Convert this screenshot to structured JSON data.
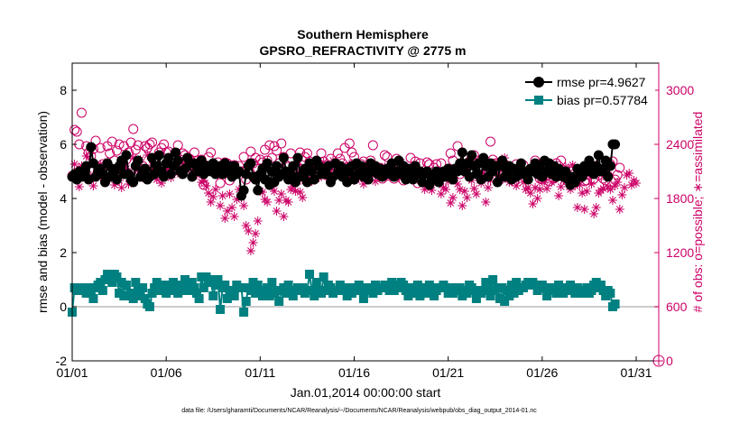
{
  "chart_data": {
    "type": "line",
    "title": "Southern Hemisphere",
    "subtitle": "GPSRO_REFRACTIVITY @ 2775 m",
    "xlabel": "Jan.01,2014 00:00:00 start",
    "ylabel_left": "rmse and bias (model - observation)",
    "ylabel_right": "# of obs: o=possible; ∗=assimilated",
    "footnote": "data file: /Users/gharamti/Documents/NCAR/Reanalysis/~/Documents/NCAR/Reanalysis/webpub/obs_diag_output_2014-01.nc",
    "x_ticks": [
      "01/01",
      "01/06",
      "01/11",
      "01/16",
      "01/21",
      "01/26",
      "01/31"
    ],
    "x_tick_days": [
      1,
      6,
      11,
      16,
      21,
      26,
      31
    ],
    "xlim": [
      1,
      32.2
    ],
    "ylim_left": [
      -2,
      9
    ],
    "yticks_left": [
      "-2",
      "0",
      "2",
      "4",
      "6",
      "8"
    ],
    "ylim_right": [
      0,
      3300
    ],
    "yticks_right": [
      "0",
      "600",
      "1200",
      "1800",
      "2400",
      "3000"
    ],
    "legend_position": "top-right",
    "colors": {
      "rmse": "#000000",
      "bias": "#008080",
      "obs": "#cc0066",
      "zero_line": "#bbbbbb"
    },
    "series": [
      {
        "name": "rmse",
        "legend": "rmse pr=4.9627",
        "axis": "left",
        "values": [
          4.8,
          4.9,
          4.7,
          5.0,
          4.8,
          4.9,
          5.2,
          4.7,
          5.9,
          5.3,
          4.8,
          5.0,
          5.1,
          4.9,
          4.6,
          5.3,
          4.8,
          5.1,
          5.0,
          4.7,
          5.2,
          5.4,
          4.9,
          5.6,
          4.9,
          4.7,
          4.6,
          5.2,
          5.4,
          4.8,
          5.0,
          5.1,
          4.7,
          4.8,
          5.5,
          4.9,
          5.2,
          5.6,
          5.0,
          4.8,
          5.3,
          5.5,
          4.9,
          5.2,
          5.7,
          5.4,
          5.0,
          4.9,
          5.1,
          5.5,
          5.3,
          4.8,
          5.3,
          5.2,
          5.0,
          5.4,
          4.9,
          5.2,
          5.2,
          5.0,
          5.3,
          4.9,
          5.1,
          5.2,
          4.9,
          5.3,
          5.0,
          5.2,
          4.8,
          5.2,
          4.9,
          5.0,
          4.1,
          4.3,
          4.9,
          5.2,
          5.3,
          4.8,
          4.7,
          4.3,
          4.9,
          5.1,
          4.7,
          5.3,
          4.5,
          5.0,
          4.6,
          5.2,
          4.8,
          4.9,
          5.5,
          5.0,
          4.7,
          4.9,
          5.2,
          4.6,
          5.5,
          4.8,
          4.9,
          5.1,
          4.6,
          5.3,
          5.0,
          4.7,
          5.4,
          5.2,
          4.9,
          5.0,
          4.9,
          5.2,
          4.6,
          4.8,
          5.3,
          4.9,
          5.2,
          4.8,
          5.1,
          4.6,
          5.0,
          5.2,
          4.7,
          5.3,
          4.9,
          5.2,
          4.8,
          5.0,
          4.7,
          5.3,
          5.0,
          5.2,
          4.9,
          5.1,
          4.8,
          5.0,
          5.1,
          4.9,
          5.3,
          4.8,
          5.0,
          5.4,
          4.9,
          5.2,
          4.7,
          5.1,
          5.0,
          4.7,
          5.2,
          4.9,
          5.0,
          4.6,
          4.9,
          5.0,
          4.5,
          4.7,
          4.8,
          5.0,
          4.6,
          4.9,
          5.0,
          4.8,
          5.1,
          4.9,
          4.7,
          5.1,
          5.0,
          5.3,
          5.7,
          5.0,
          5.3,
          4.8,
          5.6,
          5.2,
          4.9,
          5.3,
          4.7,
          5.5,
          5.2,
          4.8,
          5.3,
          5.0,
          5.2,
          4.6,
          5.2,
          5.4,
          4.8,
          5.0,
          5.2,
          4.7,
          5.1,
          4.8,
          5.0,
          5.3,
          4.9,
          5.0,
          4.7,
          5.1,
          5.0,
          5.3,
          4.9,
          5.2,
          4.8,
          5.4,
          5.0,
          5.3,
          4.9,
          5.2,
          4.8,
          5.1,
          4.9,
          4.8,
          5.0,
          4.7,
          4.5,
          4.8,
          4.6,
          5.1,
          4.9,
          4.8,
          5.2,
          5.0,
          5.4,
          5.1,
          4.9,
          5.2,
          5.6,
          5.0,
          5.1,
          5.4,
          4.8,
          5.2,
          6.0,
          6.0
        ]
      },
      {
        "name": "bias",
        "legend": "bias pr=0.57784",
        "axis": "left",
        "values": [
          -0.2,
          0.7,
          0.6,
          0.7,
          0.6,
          0.7,
          0.5,
          0.7,
          0.6,
          0.3,
          0.7,
          0.8,
          0.9,
          0.6,
          1.0,
          1.2,
          1.1,
          0.9,
          1.2,
          1.1,
          0.5,
          0.9,
          0.4,
          0.8,
          0.4,
          0.5,
          0.3,
          0.9,
          0.6,
          0.4,
          0.7,
          0.3,
          0.1,
          0.0,
          0.5,
          0.7,
          0.9,
          0.6,
          0.8,
          0.7,
          0.5,
          0.8,
          0.6,
          0.9,
          0.6,
          0.5,
          0.8,
          0.6,
          1.0,
          0.8,
          0.6,
          0.9,
          0.7,
          0.5,
          0.3,
          1.1,
          0.7,
          1.1,
          0.9,
          1.0,
          0.4,
          0.8,
          1.0,
          -0.1,
          0.7,
          0.8,
          0.3,
          0.6,
          0.6,
          0.4,
          0.8,
          0.7,
          0.7,
          -0.2,
          0.2,
          0.7,
          0.6,
          0.9,
          0.5,
          0.8,
          0.6,
          0.4,
          0.4,
          0.7,
          0.4,
          0.9,
          0.5,
          0.6,
          0.2,
          0.6,
          0.7,
          0.5,
          0.8,
          0.6,
          0.4,
          0.6,
          0.7,
          0.6,
          0.7,
          0.5,
          0.6,
          1.2,
          0.6,
          0.4,
          0.9,
          0.6,
          0.5,
          1.1,
          0.6,
          0.8,
          0.7,
          0.5,
          0.6,
          0.6,
          0.8,
          0.7,
          0.6,
          0.4,
          0.7,
          0.5,
          0.7,
          0.6,
          0.8,
          0.6,
          0.3,
          0.7,
          0.6,
          0.7,
          0.5,
          0.8,
          0.6,
          0.7,
          0.7,
          0.8,
          0.7,
          0.6,
          0.9,
          0.6,
          0.8,
          0.7,
          0.9,
          0.8,
          0.6,
          0.4,
          0.7,
          0.6,
          0.5,
          0.8,
          0.4,
          0.7,
          0.6,
          0.5,
          0.8,
          0.7,
          0.4,
          0.6,
          0.7,
          0.7,
          0.8,
          0.7,
          0.5,
          0.7,
          0.5,
          0.7,
          0.6,
          0.7,
          0.4,
          0.6,
          0.5,
          0.8,
          0.7,
          0.6,
          0.3,
          0.6,
          0.5,
          0.6,
          0.9,
          0.7,
          0.4,
          1.0,
          0.6,
          0.7,
          0.3,
          0.7,
          0.2,
          0.6,
          0.4,
          0.8,
          0.5,
          0.9,
          0.6,
          0.7,
          0.7,
          0.8,
          0.9,
          0.8,
          0.9,
          0.8,
          0.6,
          0.7,
          0.8,
          0.7,
          0.4,
          0.7,
          0.6,
          0.7,
          0.5,
          0.8,
          0.6,
          0.5,
          0.7,
          0.6,
          0.8,
          0.6,
          0.5,
          0.7,
          0.6,
          0.5,
          0.6,
          0.7,
          0.5,
          0.6,
          0.8,
          0.9,
          0.7,
          0.8,
          0.6,
          0.4,
          0.6,
          0.5,
          0.0,
          0.1
        ]
      },
      {
        "name": "possible",
        "axis": "right",
        "marker": "circle",
        "values": [
          2050,
          2560,
          2540,
          2400,
          2750,
          2090,
          2380,
          2310,
          2270,
          2350,
          2440,
          2110,
          2360,
          2180,
          2000,
          2380,
          2300,
          2430,
          2220,
          2330,
          2400,
          2190,
          2380,
          2230,
          2310,
          2420,
          2570,
          2340,
          2390,
          2130,
          2160,
          2380,
          2360,
          2400,
          2420,
          2210,
          2130,
          2310,
          2360,
          2400,
          2310,
          2320,
          2160,
          2220,
          2110,
          2390,
          2230,
          2300,
          2280,
          2210,
          2240,
          2120,
          2310,
          2220,
          2170,
          2230,
          1950,
          2100,
          2260,
          2310,
          2170,
          2110,
          2200,
          1970,
          2140,
          2200,
          2190,
          2000,
          2100,
          2170,
          2090,
          2160,
          2100,
          2260,
          2010,
          2100,
          2320,
          2190,
          2250,
          2130,
          2230,
          2200,
          2340,
          2220,
          2390,
          2250,
          2380,
          2330,
          2190,
          2410,
          2260,
          2170,
          2150,
          2300,
          2090,
          2160,
          2150,
          2310,
          2220,
          2260,
          2300,
          2210,
          2110,
          2190,
          2180,
          2120,
          2300,
          2210,
          2060,
          2130,
          2240,
          2070,
          2190,
          2300,
          2240,
          2190,
          2360,
          2150,
          2410,
          2310,
          2260,
          2140,
          2160,
          2180,
          2210,
          2130,
          2050,
          2220,
          2390,
          2100,
          2080,
          2140,
          2020,
          2280,
          2260,
          2050,
          2100,
          2020,
          2240,
          2130,
          2170,
          2000,
          2080,
          2100,
          2250,
          2050,
          2210,
          1970,
          2190,
          2080,
          2050,
          2200,
          2180,
          2020,
          2140,
          2180,
          2060,
          2190,
          2040,
          2050,
          2120,
          2300,
          2220,
          2130,
          2380,
          2070,
          2120,
          2140,
          2250,
          2210,
          2230,
          2280,
          2220,
          2130,
          2150,
          2030,
          2170,
          2070,
          2430,
          2230,
          2190,
          2130,
          2010,
          2050,
          2180,
          2110,
          2140,
          2060,
          1990,
          2180,
          2060,
          2120,
          2170,
          2020,
          2090,
          2100,
          2120,
          2220,
          2180,
          2020,
          2010,
          2160,
          2060,
          1990,
          2110,
          2020,
          2190,
          2160,
          2220,
          2040,
          2070,
          1990,
          2100,
          2130,
          2080,
          2050,
          2030,
          2110,
          1990,
          2000,
          2060,
          2080,
          2020,
          2100,
          2060,
          2210,
          2020,
          2000,
          2050,
          2180,
          2210,
          2010,
          2060,
          2140
        ]
      },
      {
        "name": "assimilated",
        "axis": "right",
        "marker": "star",
        "values": [
          2060,
          2180,
          2100,
          1930,
          2160,
          2120,
          2270,
          2010,
          2050,
          1940,
          2060,
          2140,
          2180,
          2100,
          2020,
          2210,
          2030,
          2050,
          1950,
          2100,
          2000,
          1920,
          2110,
          2130,
          1960,
          2020,
          2250,
          2120,
          2170,
          2230,
          2030,
          2090,
          2280,
          2070,
          2170,
          2150,
          2010,
          2100,
          1970,
          2080,
          2130,
          2100,
          2030,
          2160,
          2150,
          2190,
          2070,
          2100,
          2180,
          2190,
          2230,
          2100,
          2150,
          2060,
          2140,
          1980,
          2000,
          1940,
          1860,
          1760,
          1820,
          1900,
          2070,
          1720,
          1830,
          1580,
          1660,
          1850,
          1700,
          1600,
          1790,
          1900,
          1810,
          1720,
          1500,
          1440,
          1220,
          1310,
          1410,
          1550,
          1880,
          1870,
          1790,
          1760,
          1990,
          1930,
          1880,
          1660,
          1780,
          1850,
          1600,
          1780,
          1760,
          1900,
          1930,
          1880,
          1990,
          1870,
          1810,
          2000,
          2020,
          2070,
          1990,
          2110,
          2160,
          2030,
          2180,
          2200,
          2060,
          2130,
          2090,
          2220,
          2200,
          2150,
          2100,
          2160,
          2060,
          2140,
          2040,
          2190,
          2000,
          2160,
          2020,
          2090,
          1960,
          2150,
          2070,
          2110,
          2160,
          1990,
          2040,
          2100,
          2080,
          2150,
          2050,
          2140,
          2080,
          2050,
          2090,
          2030,
          2200,
          2100,
          2050,
          2010,
          2080,
          2150,
          2060,
          2110,
          2000,
          2060,
          1900,
          1960,
          2000,
          1890,
          1990,
          2060,
          2050,
          1850,
          1920,
          1900,
          1990,
          1750,
          1810,
          2060,
          1960,
          1900,
          1720,
          1880,
          1810,
          2030,
          2000,
          1910,
          1850,
          2080,
          1970,
          2080,
          1760,
          1920,
          2000,
          2070,
          2130,
          2200,
          2040,
          2150,
          2250,
          2130,
          1980,
          2070,
          2050,
          1940,
          2070,
          2150,
          1980,
          1900,
          1920,
          1860,
          1740,
          1920,
          1800,
          1900,
          1990,
          2000,
          1910,
          2110,
          1980,
          2140,
          2040,
          1830,
          1930,
          2000,
          2150,
          2050,
          1900,
          2170,
          1940,
          1700,
          1950,
          1860,
          1680,
          1880,
          2100,
          1960,
          1630,
          1700,
          1860,
          1890,
          1910,
          2040,
          1930,
          1900,
          1780,
          1940,
          1980,
          1680,
          1840,
          1920,
          2060,
          2080,
          1950,
          2000,
          1970
        ]
      }
    ],
    "endpoint_right": {
      "value": 0,
      "marker": "circle-star"
    }
  }
}
